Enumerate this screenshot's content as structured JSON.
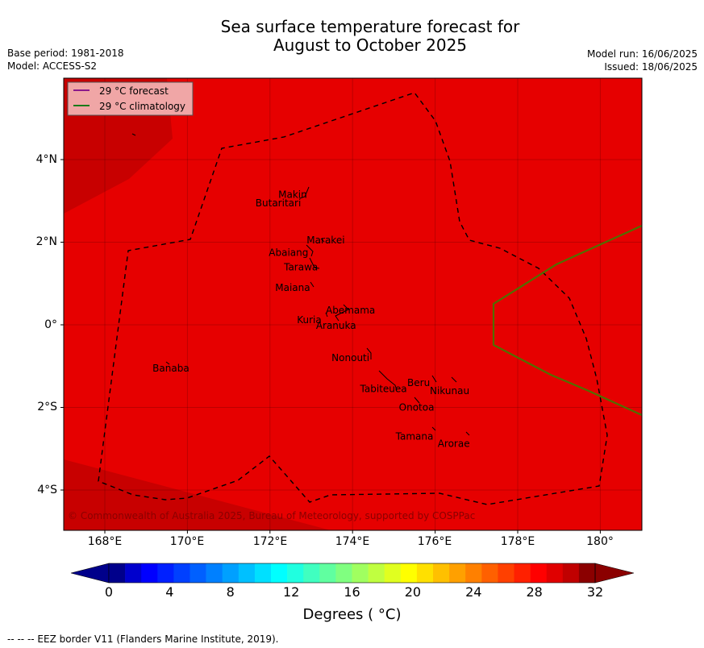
{
  "title_line1": "Sea surface temperature forecast for",
  "title_line2": "August to October 2025",
  "meta_left": [
    "Base period: 1981-2018",
    "Model: ACCESS-S2"
  ],
  "meta_right": [
    "Model run: 16/06/2025",
    "Issued: 18/06/2025"
  ],
  "lat_ticks": [
    "4°N",
    "2°N",
    "0°",
    "2°S",
    "4°S"
  ],
  "lon_ticks": [
    "168°E",
    "170°E",
    "172°E",
    "174°E",
    "176°E",
    "178°E",
    "180°"
  ],
  "legend": [
    {
      "label": "29 °C  forecast",
      "color": "#8b1a8b"
    },
    {
      "label": "29 °C  climatology",
      "color": "#1a7a1a"
    }
  ],
  "copyright": "© Commonwealth of Australia 2025, Bureau of Meteorology, supported by COSPPac",
  "places": [
    {
      "name": "Makin",
      "lon": 172.55,
      "lat": 3.15
    },
    {
      "name": "Butaritari",
      "lon": 172.2,
      "lat": 2.95
    },
    {
      "name": "Marakei",
      "lon": 173.35,
      "lat": 2.05
    },
    {
      "name": "Abaiang",
      "lon": 172.45,
      "lat": 1.75
    },
    {
      "name": "Tarawa",
      "lon": 172.75,
      "lat": 1.4
    },
    {
      "name": "Maiana",
      "lon": 172.55,
      "lat": 0.9
    },
    {
      "name": "Abemama",
      "lon": 173.95,
      "lat": 0.35
    },
    {
      "name": "Kuria",
      "lon": 172.95,
      "lat": 0.12
    },
    {
      "name": "Aranuka",
      "lon": 173.6,
      "lat": -0.02
    },
    {
      "name": "Nonouti",
      "lon": 173.95,
      "lat": -0.8
    },
    {
      "name": "Banaba",
      "lon": 169.6,
      "lat": -1.05
    },
    {
      "name": "Beru",
      "lon": 175.6,
      "lat": -1.4
    },
    {
      "name": "Nikunau",
      "lon": 176.35,
      "lat": -1.6
    },
    {
      "name": "Tabiteuea",
      "lon": 174.75,
      "lat": -1.55
    },
    {
      "name": "Onotoa",
      "lon": 175.55,
      "lat": -2.0
    },
    {
      "name": "Tamana",
      "lon": 175.5,
      "lat": -2.7
    },
    {
      "name": "Arorae",
      "lon": 176.45,
      "lat": -2.88
    }
  ],
  "colorbar": {
    "ticks": [
      "0",
      "4",
      "8",
      "12",
      "16",
      "20",
      "24",
      "28",
      "32"
    ],
    "title": "Degrees ( °C)",
    "colors": [
      "#00008b",
      "#0000cd",
      "#0000ff",
      "#0020ff",
      "#0040ff",
      "#0060ff",
      "#0080ff",
      "#00a0ff",
      "#00c0ff",
      "#00e0ff",
      "#00ffff",
      "#20ffe0",
      "#40ffc0",
      "#60ffa0",
      "#80ff80",
      "#a0ff60",
      "#c0ff40",
      "#e0ff20",
      "#ffff00",
      "#ffe000",
      "#ffc000",
      "#ffa000",
      "#ff8000",
      "#ff6000",
      "#ff4000",
      "#ff2000",
      "#ff0000",
      "#e00000",
      "#c00000",
      "#8b0000"
    ],
    "under_color": "#00008b",
    "over_color": "#8b0000"
  },
  "map_colors": {
    "main": "#e60000",
    "warm": "#c80000"
  },
  "footer": "--  --  -- EEZ border V11 (Flanders Marine Institute, 2019)."
}
